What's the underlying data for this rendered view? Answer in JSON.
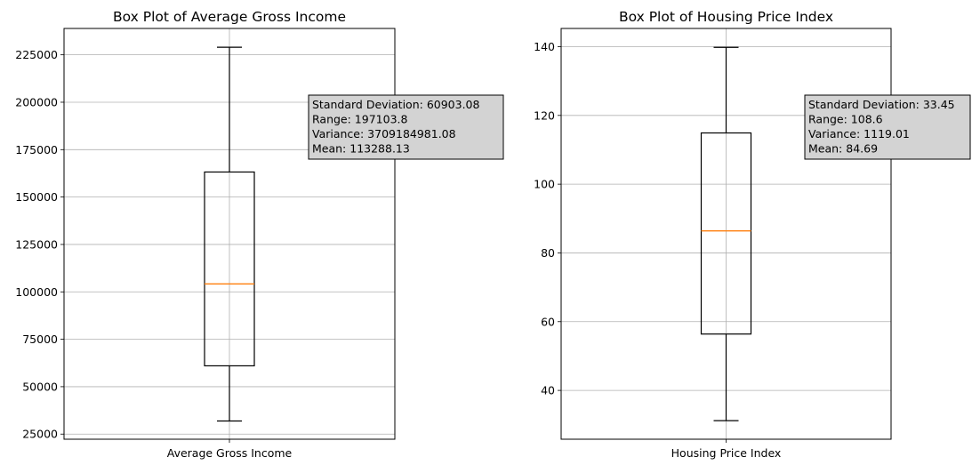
{
  "chart_data": [
    {
      "type": "box",
      "title": "Box Plot of Average Gross Income",
      "xlabel": "",
      "ylabel": "",
      "categories": [
        "Average Gross Income"
      ],
      "box": {
        "min": 31900,
        "q1": 61000,
        "median": 104200,
        "q3": 163200,
        "max": 229000
      },
      "ylim": [
        22300,
        238900
      ],
      "yticks": [
        25000,
        50000,
        75000,
        100000,
        125000,
        150000,
        175000,
        200000,
        225000
      ],
      "grid": true,
      "stats_box": {
        "lines": [
          "Standard Deviation: 60903.08",
          "Range: 197103.8",
          "Variance: 3709184981.08",
          "Mean: 113288.13"
        ]
      }
    },
    {
      "type": "box",
      "title": "Box Plot of Housing Price Index",
      "xlabel": "",
      "ylabel": "",
      "categories": [
        "Housing Price Index"
      ],
      "box": {
        "min": 31.2,
        "q1": 56.4,
        "median": 86.4,
        "q3": 114.9,
        "max": 139.8
      },
      "ylim": [
        25.8,
        145.3
      ],
      "yticks": [
        40,
        60,
        80,
        100,
        120,
        140
      ],
      "grid": true,
      "stats_box": {
        "lines": [
          "Standard Deviation: 33.45",
          "Range: 108.6",
          "Variance: 1119.01",
          "Mean: 84.69"
        ]
      }
    }
  ],
  "colors": {
    "box_edge": "#000000",
    "median": "#ff7f0e",
    "grid": "#b0b0b0",
    "stats_fill": "#d3d3d3"
  }
}
